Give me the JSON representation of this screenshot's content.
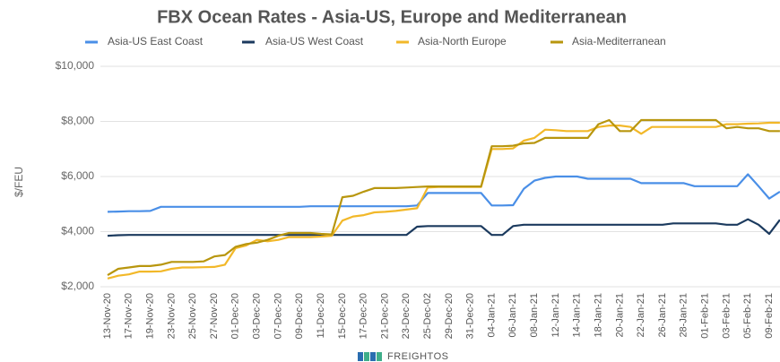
{
  "chart_data": {
    "type": "line",
    "title": "FBX Ocean Rates - Asia-US, Europe and Mediterranean",
    "y_label": "$/FEU",
    "categories": [
      "13-Nov-20",
      null,
      "17-Nov-20",
      null,
      "19-Nov-20",
      null,
      "23-Nov-20",
      null,
      "25-Nov-20",
      null,
      "27-Nov-20",
      null,
      "01-Dec-20",
      null,
      "03-Dec-20",
      null,
      "07-Dec-20",
      null,
      "09-Dec-20",
      null,
      "11-Dec-20",
      null,
      "15-Dec-20",
      null,
      "17-Dec-20",
      null,
      "21-Dec-20",
      null,
      "23-Dec-20",
      null,
      "25-Dec-02",
      null,
      "29-Dec-20",
      null,
      "31-Dec-20",
      null,
      "04-Jan-21",
      null,
      "06-Jan-21",
      null,
      "08-Jan-21",
      null,
      "12-Jan-21",
      null,
      "14-Jan-21",
      null,
      "18-Jan-21",
      null,
      "20-Jan-21",
      null,
      "22-Jan-21",
      null,
      "26-Jan-21",
      null,
      "28-Jan-21",
      null,
      "01-Feb-21",
      null,
      "03-Feb-21",
      null,
      "05-Feb-21",
      null,
      "09-Feb-21",
      null
    ],
    "series": [
      {
        "name": "Asia-US East Coast",
        "color": "#4a8fe7",
        "values": [
          4720,
          4730,
          4740,
          4740,
          4750,
          4900,
          4900,
          4900,
          4900,
          4900,
          4900,
          4900,
          4900,
          4900,
          4900,
          4900,
          4900,
          4900,
          4900,
          4920,
          4920,
          4920,
          4920,
          4920,
          4920,
          4920,
          4920,
          4920,
          4920,
          4950,
          5400,
          5400,
          5400,
          5400,
          5400,
          5400,
          4950,
          4950,
          4960,
          5550,
          5850,
          5950,
          6000,
          6000,
          6000,
          5920,
          5920,
          5920,
          5920,
          5920,
          5760,
          5760,
          5760,
          5760,
          5760,
          5650,
          5650,
          5650,
          5650,
          5650,
          6080,
          5650,
          5200,
          5450
        ]
      },
      {
        "name": "Asia-US West Coast",
        "color": "#1b3a5e",
        "values": [
          3850,
          3870,
          3880,
          3880,
          3880,
          3880,
          3880,
          3880,
          3880,
          3880,
          3880,
          3880,
          3880,
          3880,
          3880,
          3880,
          3880,
          3880,
          3880,
          3880,
          3880,
          3880,
          3880,
          3880,
          3880,
          3880,
          3880,
          3880,
          3880,
          4180,
          4200,
          4200,
          4200,
          4200,
          4200,
          4200,
          3880,
          3880,
          4200,
          4250,
          4250,
          4250,
          4250,
          4250,
          4250,
          4250,
          4250,
          4250,
          4250,
          4250,
          4250,
          4250,
          4250,
          4300,
          4300,
          4300,
          4300,
          4300,
          4250,
          4250,
          4450,
          4250,
          3920,
          4430
        ]
      },
      {
        "name": "Asia-North Europe",
        "color": "#f2b829",
        "values": [
          2300,
          2400,
          2450,
          2550,
          2550,
          2560,
          2650,
          2700,
          2700,
          2710,
          2720,
          2800,
          3400,
          3500,
          3700,
          3650,
          3700,
          3800,
          3800,
          3800,
          3820,
          3850,
          4400,
          4550,
          4600,
          4700,
          4720,
          4750,
          4800,
          4850,
          5600,
          5620,
          5620,
          5620,
          5620,
          5620,
          7000,
          7000,
          7020,
          7300,
          7400,
          7700,
          7680,
          7650,
          7650,
          7650,
          7800,
          7850,
          7850,
          7800,
          7550,
          7800,
          7800,
          7800,
          7800,
          7800,
          7800,
          7800,
          7900,
          7900,
          7920,
          7930,
          7950,
          7950
        ]
      },
      {
        "name": "Asia-Mediterranean",
        "color": "#b8960e",
        "values": [
          2420,
          2650,
          2700,
          2750,
          2750,
          2800,
          2900,
          2900,
          2900,
          2920,
          3100,
          3150,
          3450,
          3550,
          3600,
          3700,
          3850,
          3950,
          3950,
          3950,
          3920,
          3900,
          5250,
          5300,
          5450,
          5580,
          5580,
          5580,
          5600,
          5620,
          5640,
          5640,
          5640,
          5640,
          5640,
          5640,
          7100,
          7100,
          7120,
          7200,
          7220,
          7400,
          7400,
          7400,
          7400,
          7400,
          7900,
          8050,
          7650,
          7650,
          8050,
          8050,
          8050,
          8050,
          8050,
          8050,
          8050,
          8050,
          7750,
          7800,
          7750,
          7750,
          7650,
          7650
        ]
      }
    ],
    "ylim": [
      2000,
      10000
    ],
    "yticks": [
      {
        "value": 2000,
        "label": "$2,000"
      },
      {
        "value": 4000,
        "label": "$4,000"
      },
      {
        "value": 6000,
        "label": "$6,000"
      },
      {
        "value": 8000,
        "label": "$8,000"
      },
      {
        "value": 10000,
        "label": "$10,000"
      }
    ],
    "grid": true
  },
  "logo": "FREIGHTOS"
}
